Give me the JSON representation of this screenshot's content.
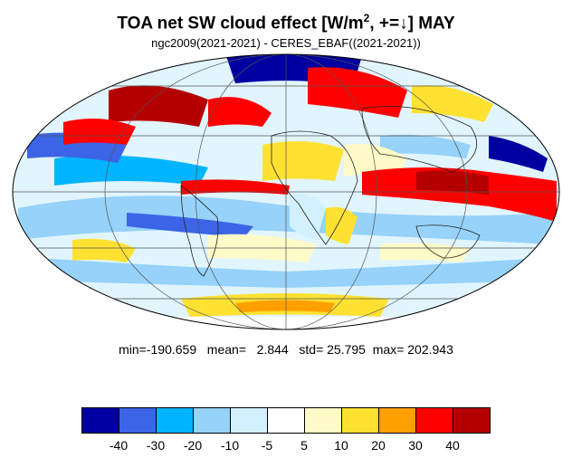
{
  "title": {
    "main_before_sup": "TOA net SW cloud effect [W/m",
    "sup": "2",
    "main_after_sup": ", +=↓]  MAY"
  },
  "subtitle": "ngc2009(2021-2021) - CERES_EBAF((2021-2021))",
  "stats": {
    "min_label": "min=",
    "min": "-190.659",
    "mean_label": "mean=",
    "mean": "2.844",
    "std_label": "std=",
    "std": "25.795",
    "max_label": "max=",
    "max": "202.943"
  },
  "colorbar": {
    "colors": [
      "#0000a0",
      "#3c64e6",
      "#00b4ff",
      "#96d2fa",
      "#d2f0ff",
      "#ffffff",
      "#fffac8",
      "#ffe132",
      "#ffa000",
      "#ff0000",
      "#b40000"
    ],
    "labels": [
      "-40",
      "-30",
      "-20",
      "-10",
      "-5",
      "5",
      "10",
      "20",
      "30",
      "40"
    ]
  },
  "map": {
    "projection": "Mollweide",
    "regions": [
      {
        "name": "north-pacific-high-lat",
        "color": "#b40000"
      },
      {
        "name": "north-atlantic",
        "color": "#ff0000"
      },
      {
        "name": "arctic",
        "color": "#0000a0"
      },
      {
        "name": "itcz-indian-pacific",
        "color": "#ff0000"
      },
      {
        "name": "tropical-pacific-east",
        "color": "#3c64e6"
      },
      {
        "name": "north-africa",
        "color": "#ffe132"
      },
      {
        "name": "southern-ocean",
        "color": "#96d2fa"
      },
      {
        "name": "antarctica-edge",
        "color": "#ffe132"
      }
    ]
  }
}
